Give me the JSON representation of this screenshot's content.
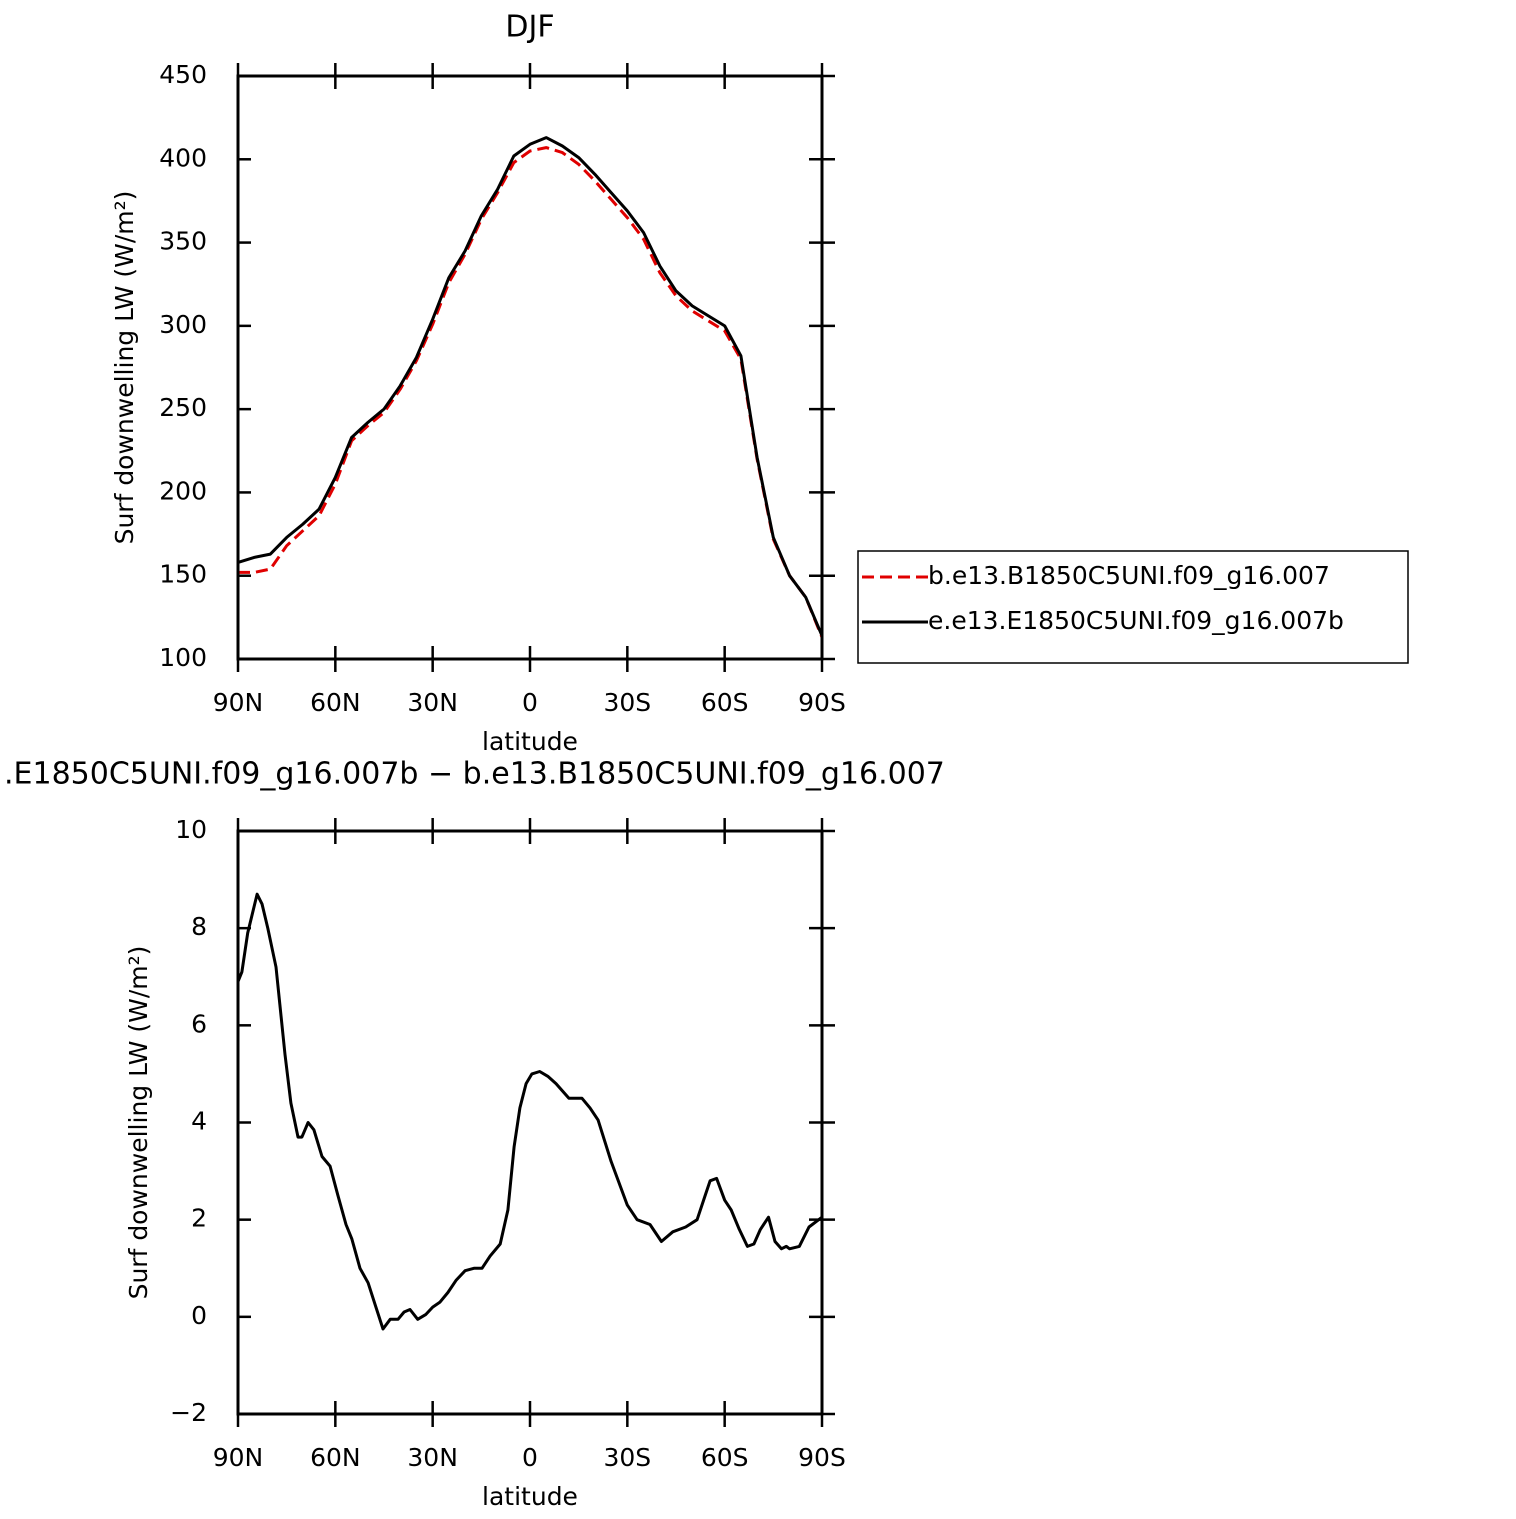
{
  "chart_data": [
    {
      "type": "line",
      "title": "DJF",
      "xlabel": "latitude",
      "ylabel": "Surf downwelling LW (W/m²)",
      "x": [
        90,
        85,
        80,
        75,
        70,
        65,
        60,
        55,
        50,
        45,
        40,
        35,
        30,
        25,
        20,
        15,
        10,
        5,
        0,
        -5,
        -10,
        -15,
        -20,
        -25,
        -30,
        -35,
        -40,
        -45,
        -50,
        -55,
        -60,
        -65,
        -70,
        -75,
        -80,
        -85,
        -90
      ],
      "series": [
        {
          "name": "b.e13.B1850C5UNI.f09_g16.007",
          "color": "#e00000",
          "line_style": "dashed",
          "values": [
            152,
            152,
            154,
            168,
            177,
            186,
            205,
            231,
            240,
            248,
            262,
            279,
            301,
            326,
            343,
            364,
            380,
            398,
            405,
            407,
            404,
            397,
            387,
            376,
            365,
            352,
            332,
            318,
            309,
            303,
            297,
            280,
            220,
            172,
            150,
            137,
            113
          ]
        },
        {
          "name": "e.e13.E1850C5UNI.f09_g16.007b",
          "color": "#000000",
          "line_style": "solid",
          "values": [
            158,
            161,
            163,
            173,
            181,
            190,
            209,
            233,
            242,
            250,
            264,
            281,
            304,
            329,
            345,
            366,
            382,
            402,
            409,
            413,
            408,
            401,
            391,
            380,
            369,
            356,
            336,
            321,
            312,
            306,
            300,
            282,
            221,
            173,
            150,
            137,
            114
          ]
        }
      ],
      "xlim": [
        90,
        -90
      ],
      "xticks": [
        {
          "value": 90,
          "label": "90N"
        },
        {
          "value": 60,
          "label": "60N"
        },
        {
          "value": 30,
          "label": "30N"
        },
        0,
        {
          "value": -30,
          "label": "30S"
        },
        {
          "value": -60,
          "label": "60S"
        },
        {
          "value": -90,
          "label": "90S"
        }
      ],
      "ylim": [
        100,
        450
      ],
      "yticks": [
        100,
        150,
        200,
        250,
        300,
        350,
        400,
        450
      ],
      "legend": "right"
    },
    {
      "type": "line",
      "title": ".E1850C5UNI.f09_g16.007b − b.e13.B1850C5UNI.f09_g16.007",
      "xlabel": "latitude",
      "ylabel": "Surf downwelling LW (W/m²)",
      "x": [
        90,
        88.8,
        87,
        84.1,
        82.6,
        80.8,
        78.3,
        75.5,
        73.7,
        71.5,
        70.3,
        68.4,
        66.6,
        64.1,
        61.6,
        59.2,
        56.7,
        54.9,
        52.4,
        49.9,
        47.5,
        45.3,
        43.1,
        40.7,
        38.8,
        37,
        34.6,
        32.1,
        30,
        27.8,
        25.3,
        22.8,
        20,
        17.3,
        14.8,
        12.3,
        9.2,
        6.8,
        4.9,
        3.1,
        1.2,
        -0.6,
        -3,
        -5.5,
        -8,
        -12,
        -16,
        -18.5,
        -21,
        -25,
        -30,
        -33,
        -37,
        -40.5,
        -44,
        -48,
        -51.5,
        -54,
        -55.5,
        -57.5,
        -60,
        -62,
        -64.5,
        -67,
        -69,
        -71,
        -73.5,
        -75.5,
        -77.5,
        -79,
        -80,
        -83,
        -86,
        -90
      ],
      "values": [
        6.9,
        7.1,
        7.9,
        8.7,
        8.5,
        8.0,
        7.2,
        5.4,
        4.4,
        3.7,
        3.7,
        4.0,
        3.85,
        3.3,
        3.1,
        2.5,
        1.9,
        1.6,
        1.0,
        0.7,
        0.2,
        -0.25,
        -0.05,
        -0.05,
        0.1,
        0.15,
        -0.05,
        0.05,
        0.2,
        0.3,
        0.5,
        0.75,
        0.95,
        1.0,
        1.0,
        1.25,
        1.5,
        2.2,
        3.5,
        4.3,
        4.8,
        5.0,
        5.05,
        4.95,
        4.8,
        4.5,
        4.5,
        4.3,
        4.05,
        3.2,
        2.3,
        2.0,
        1.9,
        1.55,
        1.75,
        1.85,
        2.0,
        2.5,
        2.8,
        2.85,
        2.4,
        2.2,
        1.8,
        1.45,
        1.5,
        1.8,
        2.05,
        1.55,
        1.4,
        1.45,
        1.4,
        1.45,
        1.85,
        2.05
      ],
      "color": "#000000",
      "xlim": [
        90,
        -90
      ],
      "xticks": [
        {
          "value": 90,
          "label": "90N"
        },
        {
          "value": 60,
          "label": "60N"
        },
        {
          "value": 30,
          "label": "30N"
        },
        0,
        {
          "value": -30,
          "label": "30S"
        },
        {
          "value": -60,
          "label": "60S"
        },
        {
          "value": -90,
          "label": "90S"
        }
      ],
      "ylim": [
        -2,
        10
      ],
      "yticks": [
        {
          "value": -2,
          "label": "−2"
        },
        0,
        2,
        4,
        6,
        8,
        10
      ]
    }
  ]
}
